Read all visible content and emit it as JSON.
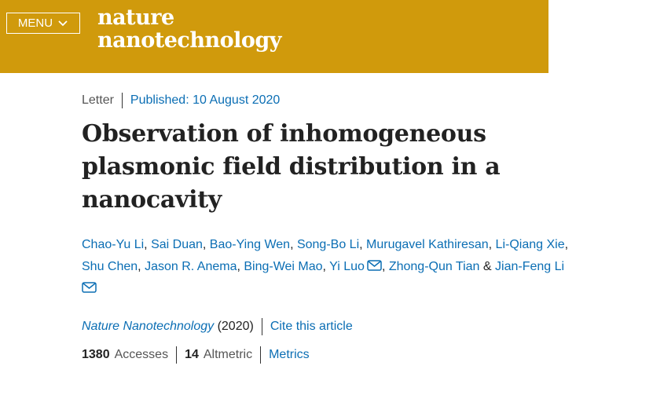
{
  "header": {
    "menu_label": "MENU",
    "logo_line1": "nature",
    "logo_line2": "nanotechnology",
    "bg_color": "#d09a0c"
  },
  "article": {
    "type": "Letter",
    "published": "Published: 10 August 2020",
    "title": "Observation of inhomogeneous plasmonic field distribution in a nanocavity",
    "authors": [
      "Chao-Yu Li",
      "Sai Duan",
      "Bao-Ying Wen",
      "Song-Bo Li",
      "Murugavel Kathiresan",
      "Li-Qiang Xie",
      "Shu Chen",
      "Jason R. Anema",
      "Bing-Wei Mao",
      "Yi Luo",
      "Zhong-Qun Tian",
      "Jian-Feng Li"
    ],
    "journal": "Nature Nanotechnology",
    "year": "(2020)",
    "cite_label": "Cite this article",
    "accesses_count": "1380",
    "accesses_label": "Accesses",
    "altmetric_count": "14",
    "altmetric_label": "Altmetric",
    "metrics_label": "Metrics"
  }
}
